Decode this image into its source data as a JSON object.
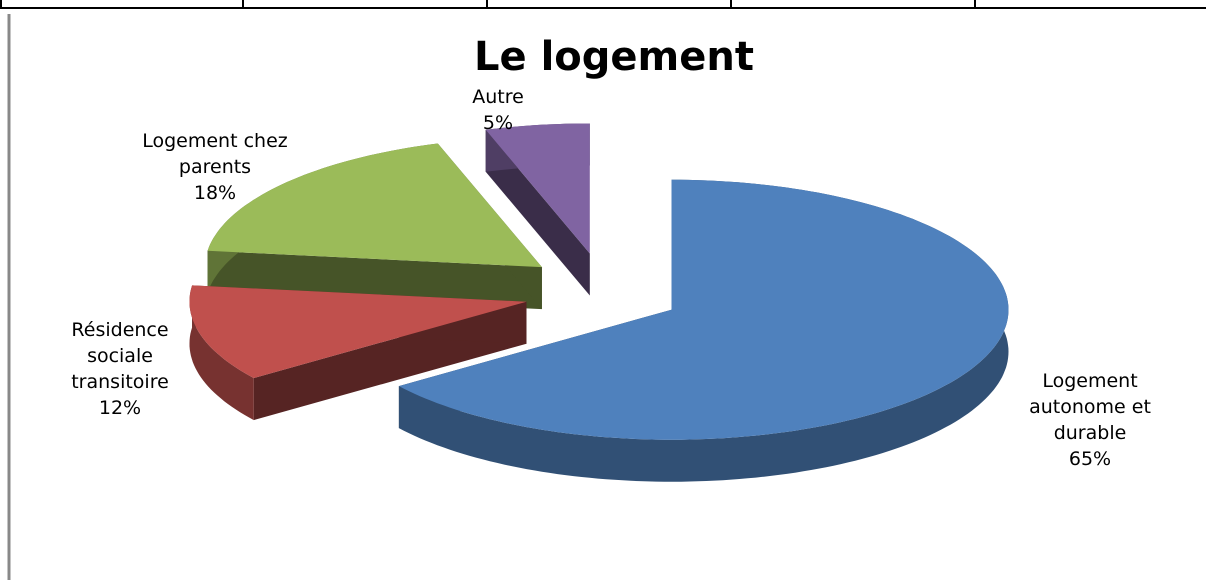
{
  "chart_data": {
    "type": "pie",
    "title": "Le logement",
    "categories": [
      "Logement autonome et durable",
      "Résidence sociale transitoire",
      "Logement chez parents",
      "Autre"
    ],
    "values": [
      65,
      12,
      18,
      5
    ],
    "value_labels": [
      "65%",
      "12%",
      "18%",
      "5%"
    ],
    "colors": [
      "#4f81bd",
      "#c0504d",
      "#9bbb59",
      "#8064a2"
    ],
    "exploded": true,
    "three_d": true
  }
}
